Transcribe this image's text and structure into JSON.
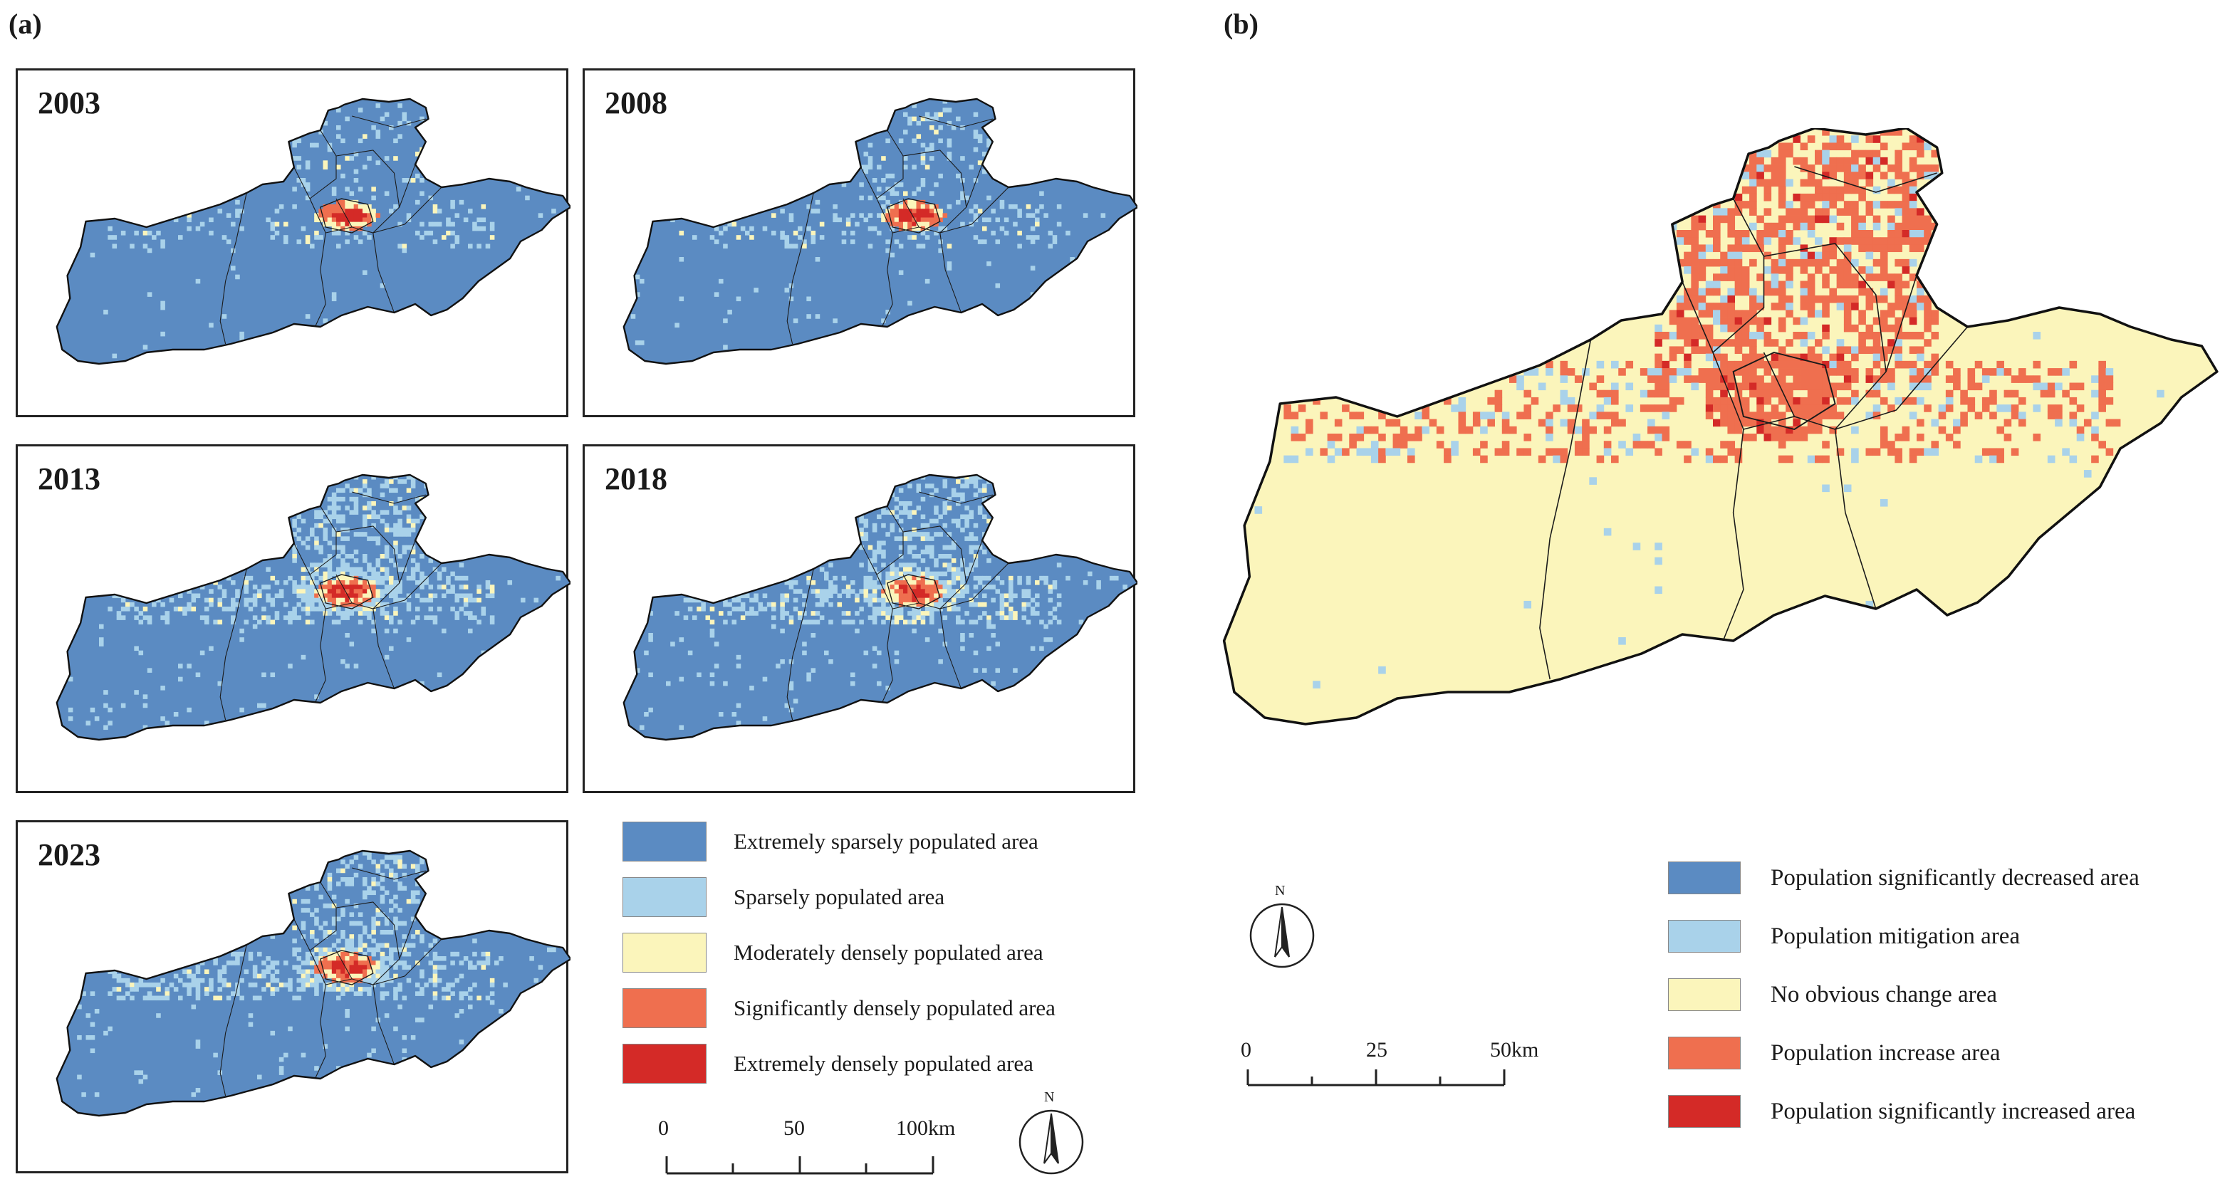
{
  "panel_a": {
    "label": "(a)",
    "maps": [
      {
        "year": "2003"
      },
      {
        "year": "2008"
      },
      {
        "year": "2013"
      },
      {
        "year": "2018"
      },
      {
        "year": "2023"
      }
    ],
    "legend": [
      {
        "label": "Extremely sparsely populated area",
        "color": "#5b8bc2"
      },
      {
        "label": "Sparsely populated area",
        "color": "#a9d2ea"
      },
      {
        "label": "Moderately densely populated area",
        "color": "#fbf5bb"
      },
      {
        "label": "Significantly densely populated area",
        "color": "#ef6f4f"
      },
      {
        "label": "Extremely densely populated area",
        "color": "#d42a27"
      }
    ],
    "scale": {
      "ticks": [
        "0",
        "50",
        "100km"
      ]
    },
    "north": "N"
  },
  "panel_b": {
    "label": "(b)",
    "legend": [
      {
        "label": "Population significantly decreased area",
        "color": "#5b8bc2"
      },
      {
        "label": "Population mitigation area",
        "color": "#a9d2ea"
      },
      {
        "label": "No obvious change area",
        "color": "#fbf5bb"
      },
      {
        "label": "Population increase area",
        "color": "#ef6f4f"
      },
      {
        "label": "Population significantly increased area",
        "color": "#d42a27"
      }
    ],
    "scale": {
      "ticks": [
        "0",
        "25",
        "50km"
      ]
    },
    "north": "N"
  }
}
